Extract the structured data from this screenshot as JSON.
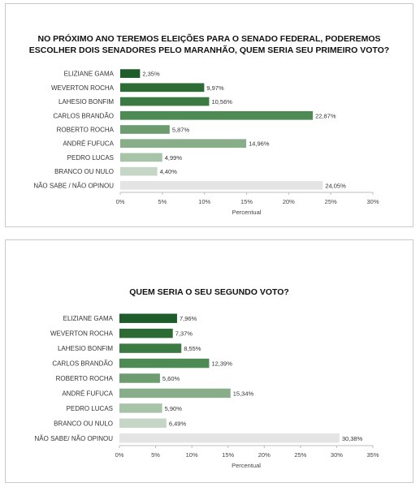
{
  "chart_data": [
    {
      "type": "bar",
      "orientation": "horizontal",
      "title": "NO PRÓXIMO ANO TEREMOS ELEIÇÕES PARA O SENADO FEDERAL, PODEREMOS ESCOLHER DOIS SENADORES PELO MARANHÃO, QUEM SERIA SEU PRIMEIRO VOTO?",
      "categories": [
        "ELIZIANE GAMA",
        "WEVERTON ROCHA",
        "LAHESIO BONFIM",
        "CARLOS BRANDÃO",
        "ROBERTO ROCHA",
        "ANDRÉ FUFUCA",
        "PEDRO LUCAS",
        "BRANCO OU NULO",
        "NÃO SABE / NÃO OPINOU"
      ],
      "values": [
        2.35,
        9.97,
        10.56,
        22.87,
        5.87,
        14.96,
        4.99,
        4.4,
        24.05
      ],
      "value_labels": [
        "2,35%",
        "9,97%",
        "10,56%",
        "22,87%",
        "5,87%",
        "14,96%",
        "4,99%",
        "4,40%",
        "24,05%"
      ],
      "colors": [
        "#1f5c2b",
        "#2d6b35",
        "#3c7a43",
        "#4e8a53",
        "#6c9c6f",
        "#87ae89",
        "#a7c3a8",
        "#c5d6c6",
        "#e4e4e4"
      ],
      "xlabel": "Percentual",
      "xlim": [
        0,
        30
      ],
      "xticks": [
        "0%",
        "5%",
        "10%",
        "15%",
        "20%",
        "25%",
        "30%"
      ],
      "grid": false
    },
    {
      "type": "bar",
      "orientation": "horizontal",
      "title": "QUEM SERIA O SEU SEGUNDO VOTO?",
      "categories": [
        "ELIZIANE GAMA",
        "WEVERTON ROCHA",
        "LAHESIO BONFIM",
        "CARLOS BRANDÃO",
        "ROBERTO ROCHA",
        "ANDRÉ FUFUCA",
        "PEDRO LUCAS",
        "BRANCO OU NULO",
        "NÃO SABE/ NÃO OPINOU"
      ],
      "values": [
        7.96,
        7.37,
        8.55,
        12.39,
        5.6,
        15.34,
        5.9,
        6.49,
        30.38
      ],
      "value_labels": [
        "7,96%",
        "7,37%",
        "8,55%",
        "12,39%",
        "5,60%",
        "15,34%",
        "5,90%",
        "6,49%",
        "30,38%"
      ],
      "colors": [
        "#1f5c2b",
        "#2d6b35",
        "#3c7a43",
        "#4e8a53",
        "#6c9c6f",
        "#87ae89",
        "#a7c3a8",
        "#c5d6c6",
        "#e4e4e4"
      ],
      "xlabel": "Percentual",
      "xlim": [
        0,
        35
      ],
      "xticks": [
        "0%",
        "5%",
        "10%",
        "15%",
        "20%",
        "25%",
        "30%",
        "35%"
      ],
      "grid": false
    }
  ]
}
